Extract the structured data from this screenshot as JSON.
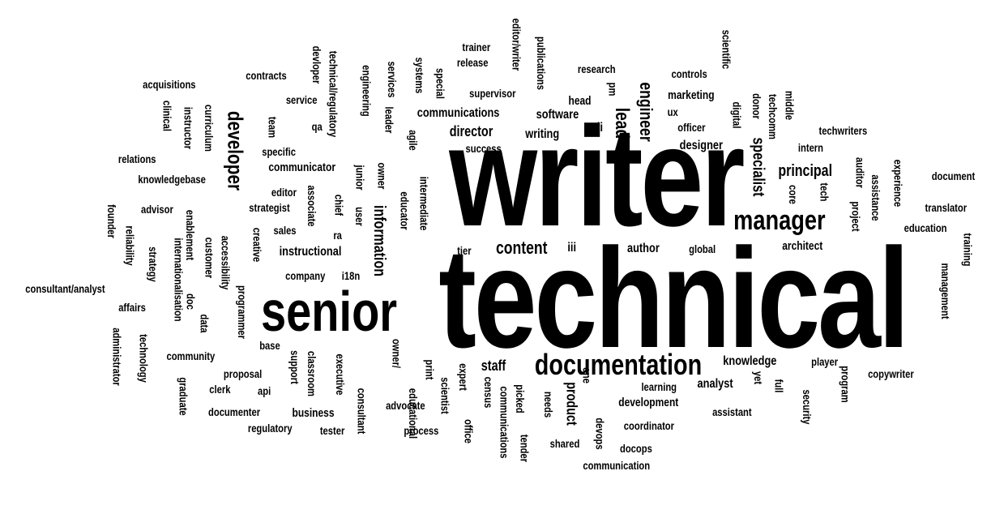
{
  "words": [
    {
      "text": "writer",
      "size": 175,
      "rot": 0
    },
    {
      "text": "technical",
      "size": 175,
      "rot": 0
    },
    {
      "text": "senior",
      "size": 70,
      "rot": 0
    },
    {
      "text": "documentation",
      "size": 36,
      "rot": 0
    },
    {
      "text": "manager",
      "size": 34,
      "rot": 0
    },
    {
      "text": "developer",
      "size": 26,
      "rot": 90
    },
    {
      "text": "engineer",
      "size": 22,
      "rot": 90
    },
    {
      "text": "lead",
      "size": 24,
      "rot": 90
    },
    {
      "text": "specialist",
      "size": 20,
      "rot": 90
    },
    {
      "text": "information",
      "size": 20,
      "rot": 90
    },
    {
      "text": "content",
      "size": 22,
      "rot": 0
    },
    {
      "text": "principal",
      "size": 20,
      "rot": 0
    },
    {
      "text": "director",
      "size": 18,
      "rot": 0
    },
    {
      "text": "staff",
      "size": 18,
      "rot": 0
    },
    {
      "text": "product",
      "size": 18,
      "rot": 90
    },
    {
      "text": "communications",
      "size": 16,
      "rot": 0
    },
    {
      "text": "writing",
      "size": 16,
      "rot": 0
    },
    {
      "text": "software",
      "size": 16,
      "rot": 0
    },
    {
      "text": "designer",
      "size": 16,
      "rot": 0
    },
    {
      "text": "knowledge",
      "size": 16,
      "rot": 0
    },
    {
      "text": "analyst",
      "size": 16,
      "rot": 0
    },
    {
      "text": "instructional",
      "size": 16,
      "rot": 0
    },
    {
      "text": "communicator",
      "size": 15,
      "rot": 0
    },
    {
      "text": "author",
      "size": 16,
      "rot": 0
    },
    {
      "text": "architect",
      "size": 15,
      "rot": 0
    },
    {
      "text": "development",
      "size": 15,
      "rot": 0
    },
    {
      "text": "business",
      "size": 15,
      "rot": 0
    },
    {
      "text": "marketing",
      "size": 15,
      "rot": 0
    },
    {
      "text": "head",
      "size": 15,
      "rot": 0
    },
    {
      "text": "supervisor",
      "size": 14,
      "rot": 0
    },
    {
      "text": "research",
      "size": 14,
      "rot": 0
    },
    {
      "text": "controls",
      "size": 14,
      "rot": 0
    },
    {
      "text": "trainer",
      "size": 14,
      "rot": 0
    },
    {
      "text": "release",
      "size": 14,
      "rot": 0
    },
    {
      "text": "contracts",
      "size": 14,
      "rot": 0
    },
    {
      "text": "acquisitions",
      "size": 14,
      "rot": 0
    },
    {
      "text": "service",
      "size": 14,
      "rot": 0
    },
    {
      "text": "qa",
      "size": 14,
      "rot": 0
    },
    {
      "text": "specific",
      "size": 14,
      "rot": 0
    },
    {
      "text": "relations",
      "size": 14,
      "rot": 0
    },
    {
      "text": "knowledgebase",
      "size": 14,
      "rot": 0
    },
    {
      "text": "editor",
      "size": 14,
      "rot": 0
    },
    {
      "text": "strategist",
      "size": 14,
      "rot": 0
    },
    {
      "text": "advisor",
      "size": 14,
      "rot": 0
    },
    {
      "text": "sales",
      "size": 14,
      "rot": 0
    },
    {
      "text": "ra",
      "size": 14,
      "rot": 0
    },
    {
      "text": "company",
      "size": 14,
      "rot": 0
    },
    {
      "text": "i18n",
      "size": 14,
      "rot": 0
    },
    {
      "text": "consultant/analyst",
      "size": 14,
      "rot": 0
    },
    {
      "text": "affairs",
      "size": 14,
      "rot": 0
    },
    {
      "text": "base",
      "size": 14,
      "rot": 0
    },
    {
      "text": "community",
      "size": 14,
      "rot": 0
    },
    {
      "text": "proposal",
      "size": 14,
      "rot": 0
    },
    {
      "text": "clerk",
      "size": 14,
      "rot": 0
    },
    {
      "text": "api",
      "size": 14,
      "rot": 0
    },
    {
      "text": "documenter",
      "size": 14,
      "rot": 0
    },
    {
      "text": "regulatory",
      "size": 14,
      "rot": 0
    },
    {
      "text": "tester",
      "size": 14,
      "rot": 0
    },
    {
      "text": "advocate",
      "size": 14,
      "rot": 0
    },
    {
      "text": "process",
      "size": 14,
      "rot": 0
    },
    {
      "text": "success",
      "size": 14,
      "rot": 0
    },
    {
      "text": "tier",
      "size": 14,
      "rot": 0
    },
    {
      "text": "iii",
      "size": 16,
      "rot": 0
    },
    {
      "text": "ii",
      "size": 16,
      "rot": 0
    },
    {
      "text": "pm",
      "size": 14,
      "rot": 90
    },
    {
      "text": "ux",
      "size": 14,
      "rot": 0
    },
    {
      "text": "officer",
      "size": 14,
      "rot": 0
    },
    {
      "text": "global",
      "size": 14,
      "rot": 0
    },
    {
      "text": "intern",
      "size": 14,
      "rot": 0
    },
    {
      "text": "techwriters",
      "size": 14,
      "rot": 0
    },
    {
      "text": "document",
      "size": 14,
      "rot": 0
    },
    {
      "text": "translator",
      "size": 14,
      "rot": 0
    },
    {
      "text": "education",
      "size": 14,
      "rot": 0
    },
    {
      "text": "player",
      "size": 14,
      "rot": 0
    },
    {
      "text": "copywriter",
      "size": 14,
      "rot": 0
    },
    {
      "text": "assistant",
      "size": 14,
      "rot": 0
    },
    {
      "text": "learning",
      "size": 14,
      "rot": 0
    },
    {
      "text": "coordinator",
      "size": 14,
      "rot": 0
    },
    {
      "text": "docops",
      "size": 14,
      "rot": 0
    },
    {
      "text": "shared",
      "size": 14,
      "rot": 0
    },
    {
      "text": "communication",
      "size": 14,
      "rot": 0
    },
    {
      "text": "editor/writer",
      "size": 14,
      "rot": 90
    },
    {
      "text": "publications",
      "size": 14,
      "rot": 90
    },
    {
      "text": "special",
      "size": 14,
      "rot": 90
    },
    {
      "text": "systems",
      "size": 14,
      "rot": 90
    },
    {
      "text": "services",
      "size": 14,
      "rot": 90
    },
    {
      "text": "leader",
      "size": 14,
      "rot": 90
    },
    {
      "text": "engineering",
      "size": 14,
      "rot": 90
    },
    {
      "text": "technical/regulatory",
      "size": 14,
      "rot": 90
    },
    {
      "text": "devloper",
      "size": 14,
      "rot": 90
    },
    {
      "text": "team",
      "size": 14,
      "rot": 90
    },
    {
      "text": "clinical",
      "size": 14,
      "rot": 90
    },
    {
      "text": "instructor",
      "size": 14,
      "rot": 90
    },
    {
      "text": "curriculum",
      "size": 14,
      "rot": 90
    },
    {
      "text": "agile",
      "size": 14,
      "rot": 90
    },
    {
      "text": "junior",
      "size": 14,
      "rot": 90
    },
    {
      "text": "owner",
      "size": 14,
      "rot": 90
    },
    {
      "text": "associate",
      "size": 14,
      "rot": 90
    },
    {
      "text": "chief",
      "size": 14,
      "rot": 90
    },
    {
      "text": "user",
      "size": 14,
      "rot": 90
    },
    {
      "text": "educator",
      "size": 14,
      "rot": 90
    },
    {
      "text": "intermediate",
      "size": 14,
      "rot": 90
    },
    {
      "text": "founder",
      "size": 14,
      "rot": 90
    },
    {
      "text": "reliability",
      "size": 14,
      "rot": 90
    },
    {
      "text": "strategy",
      "size": 14,
      "rot": 90
    },
    {
      "text": "enablement",
      "size": 14,
      "rot": 90
    },
    {
      "text": "internationalisation",
      "size": 14,
      "rot": 90
    },
    {
      "text": "customer",
      "size": 14,
      "rot": 90
    },
    {
      "text": "accessibility",
      "size": 14,
      "rot": 90
    },
    {
      "text": "creative",
      "size": 14,
      "rot": 90
    },
    {
      "text": "doc",
      "size": 14,
      "rot": 90
    },
    {
      "text": "data",
      "size": 14,
      "rot": 90
    },
    {
      "text": "programmer",
      "size": 14,
      "rot": 90
    },
    {
      "text": "administrator",
      "size": 14,
      "rot": 90
    },
    {
      "text": "technology",
      "size": 14,
      "rot": 90
    },
    {
      "text": "graduate",
      "size": 14,
      "rot": 90
    },
    {
      "text": "support",
      "size": 14,
      "rot": 90
    },
    {
      "text": "classroom",
      "size": 14,
      "rot": 90
    },
    {
      "text": "executive",
      "size": 14,
      "rot": 90
    },
    {
      "text": "consultant",
      "size": 14,
      "rot": 90
    },
    {
      "text": "educational",
      "size": 14,
      "rot": 90
    },
    {
      "text": "owner/",
      "size": 14,
      "rot": 90
    },
    {
      "text": "print",
      "size": 14,
      "rot": 90
    },
    {
      "text": "scientist",
      "size": 14,
      "rot": 90
    },
    {
      "text": "expert",
      "size": 14,
      "rot": 90
    },
    {
      "text": "office",
      "size": 14,
      "rot": 90
    },
    {
      "text": "census",
      "size": 14,
      "rot": 90
    },
    {
      "text": "communications",
      "size": 14,
      "rot": 90
    },
    {
      "text": "picked",
      "size": 14,
      "rot": 90
    },
    {
      "text": "tender",
      "size": 14,
      "rot": 90
    },
    {
      "text": "needs",
      "size": 14,
      "rot": 90
    },
    {
      "text": "one",
      "size": 14,
      "rot": 90
    },
    {
      "text": "devops",
      "size": 14,
      "rot": 90
    },
    {
      "text": "scientific",
      "size": 14,
      "rot": 90
    },
    {
      "text": "donor",
      "size": 14,
      "rot": 90
    },
    {
      "text": "digital",
      "size": 14,
      "rot": 90
    },
    {
      "text": "techcomm",
      "size": 14,
      "rot": 90
    },
    {
      "text": "middle",
      "size": 14,
      "rot": 90
    },
    {
      "text": "core",
      "size": 14,
      "rot": 90
    },
    {
      "text": "tech",
      "size": 14,
      "rot": 90
    },
    {
      "text": "auditor",
      "size": 14,
      "rot": 90
    },
    {
      "text": "project",
      "size": 14,
      "rot": 90
    },
    {
      "text": "assistance",
      "size": 14,
      "rot": 90
    },
    {
      "text": "experience",
      "size": 14,
      "rot": 90
    },
    {
      "text": "training",
      "size": 14,
      "rot": 90
    },
    {
      "text": "management",
      "size": 14,
      "rot": 90
    },
    {
      "text": "yet",
      "size": 14,
      "rot": 90
    },
    {
      "text": "full",
      "size": 14,
      "rot": 90
    },
    {
      "text": "security",
      "size": 14,
      "rot": 90
    },
    {
      "text": "program",
      "size": 14,
      "rot": 90
    }
  ]
}
